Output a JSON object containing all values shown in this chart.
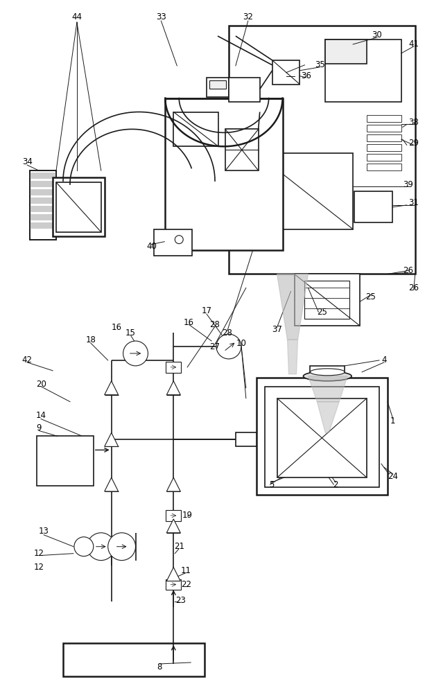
{
  "bg_color": "#ffffff",
  "line_color": "#1a1a1a",
  "gray_color": "#aaaaaa",
  "light_gray": "#cccccc",
  "figsize": [
    6.26,
    10.0
  ],
  "dpi": 100
}
